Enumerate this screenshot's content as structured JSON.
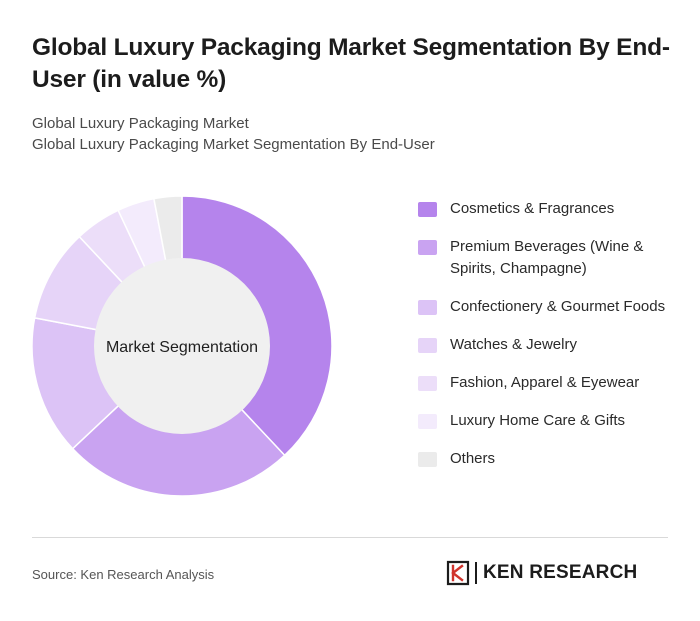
{
  "title": "Global Luxury Packaging Market Segmentation By End-User (in value %)",
  "subtitle": {
    "line1": "Global Luxury Packaging Market",
    "line2": "Global Luxury Packaging Market Segmentation By End-User"
  },
  "chart_data": {
    "type": "pie",
    "variant": "donut",
    "center_label": "Market Segmentation",
    "legend_position": "right",
    "slices": [
      {
        "label": "Cosmetics & Fragrances",
        "value": 38,
        "color": "#b584ec"
      },
      {
        "label": "Premium Beverages (Wine & Spirits, Champagne)",
        "value": 25,
        "color": "#c9a3f1"
      },
      {
        "label": "Confectionery & Gourmet Foods",
        "value": 15,
        "color": "#dcc3f6"
      },
      {
        "label": "Watches & Jewelry",
        "value": 10,
        "color": "#e6d4f8"
      },
      {
        "label": "Fashion, Apparel & Eyewear",
        "value": 5,
        "color": "#ecdef9"
      },
      {
        "label": "Luxury Home Care & Gifts",
        "value": 4,
        "color": "#f3ebfc"
      },
      {
        "label": "Others",
        "value": 3,
        "color": "#ebebeb"
      }
    ]
  },
  "footer": {
    "source": "Source: Ken Research Analysis",
    "brand": "KEN RESEARCH"
  }
}
